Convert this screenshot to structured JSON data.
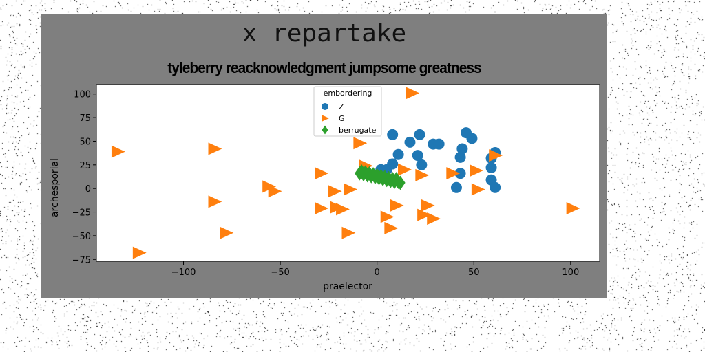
{
  "suptitle": "x repartake",
  "chart_data": {
    "type": "scatter",
    "title": "tyleberry reacknowledgment jumpsome greatness",
    "xlabel": "praelector",
    "ylabel": "archesporial",
    "xlim": [
      -145,
      115
    ],
    "ylim": [
      -77,
      110
    ],
    "xticks": [
      -100,
      -50,
      0,
      50,
      100
    ],
    "yticks": [
      -75,
      -50,
      -25,
      0,
      25,
      50,
      75,
      100
    ],
    "xtick_labels": [
      "−100",
      "−50",
      "0",
      "50",
      "100"
    ],
    "ytick_labels": [
      "−75",
      "−50",
      "−25",
      "0",
      "25",
      "50",
      "75",
      "100"
    ],
    "grid": false,
    "legend": {
      "title": "embordering",
      "placement": "top-center"
    },
    "series": [
      {
        "name": "Z",
        "marker": "circle",
        "color": "#1f77b4",
        "points": [
          [
            8,
            57
          ],
          [
            22,
            57
          ],
          [
            17,
            49
          ],
          [
            29,
            47
          ],
          [
            32,
            47
          ],
          [
            46,
            59
          ],
          [
            49,
            53
          ],
          [
            11,
            36
          ],
          [
            21,
            35
          ],
          [
            8,
            26
          ],
          [
            23,
            25
          ],
          [
            43,
            33
          ],
          [
            44,
            42
          ],
          [
            61,
            38
          ],
          [
            59,
            32
          ],
          [
            59,
            22
          ],
          [
            43,
            16
          ],
          [
            59,
            9
          ],
          [
            61,
            1
          ],
          [
            41,
            1
          ],
          [
            2,
            20
          ],
          [
            5,
            20
          ]
        ]
      },
      {
        "name": "G",
        "marker": "triangle-right",
        "color": "#ff7f0e",
        "points": [
          [
            -134,
            39
          ],
          [
            -84,
            42
          ],
          [
            -9,
            48
          ],
          [
            18,
            101
          ],
          [
            -29,
            16
          ],
          [
            -56,
            2
          ],
          [
            -53,
            -3
          ],
          [
            -22,
            -3
          ],
          [
            -14,
            -1
          ],
          [
            -84,
            -14
          ],
          [
            -29,
            -21
          ],
          [
            -21,
            -20
          ],
          [
            -18,
            -22
          ],
          [
            10,
            -18
          ],
          [
            26,
            -18
          ],
          [
            -78,
            -47
          ],
          [
            -15,
            -47
          ],
          [
            5,
            -30
          ],
          [
            7,
            -42
          ],
          [
            24,
            -28
          ],
          [
            29,
            -32
          ],
          [
            -123,
            -68
          ],
          [
            -6,
            24
          ],
          [
            14,
            20
          ],
          [
            23,
            14
          ],
          [
            39,
            16
          ],
          [
            51,
            19
          ],
          [
            52,
            -1
          ],
          [
            61,
            35
          ],
          [
            101,
            -21
          ]
        ]
      },
      {
        "name": "berrugate",
        "marker": "diamond",
        "color": "#2ca02c",
        "points": [
          [
            -9,
            16
          ],
          [
            -7,
            15
          ],
          [
            -5,
            14
          ],
          [
            -3,
            13
          ],
          [
            -1,
            12
          ],
          [
            1,
            11
          ],
          [
            3,
            10
          ],
          [
            5,
            9
          ],
          [
            7,
            8
          ],
          [
            9,
            7
          ],
          [
            11,
            7
          ],
          [
            12,
            6
          ],
          [
            -8,
            18
          ],
          [
            -6,
            17
          ],
          [
            -4,
            16
          ],
          [
            -2,
            15
          ],
          [
            0,
            14
          ],
          [
            2,
            13
          ],
          [
            4,
            12
          ],
          [
            6,
            11
          ],
          [
            8,
            10
          ],
          [
            10,
            10
          ]
        ]
      }
    ]
  }
}
